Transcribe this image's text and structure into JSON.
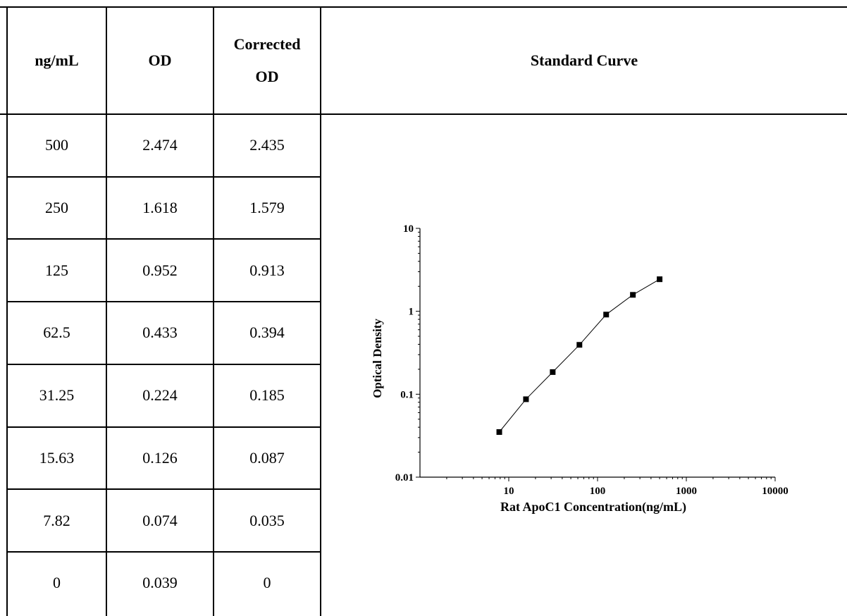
{
  "table": {
    "headers": {
      "conc": "ng/mL",
      "od": "OD",
      "corrected_line1": "Corrected",
      "corrected_line2": "OD",
      "curve": "Standard Curve"
    },
    "rows": [
      {
        "conc": "500",
        "od": "2.474",
        "corrected": "2.435"
      },
      {
        "conc": "250",
        "od": "1.618",
        "corrected": "1.579"
      },
      {
        "conc": "125",
        "od": "0.952",
        "corrected": "0.913"
      },
      {
        "conc": "62.5",
        "od": "0.433",
        "corrected": "0.394"
      },
      {
        "conc": "31.25",
        "od": "0.224",
        "corrected": "0.185"
      },
      {
        "conc": "15.63",
        "od": "0.126",
        "corrected": "0.087"
      },
      {
        "conc": "7.82",
        "od": "0.074",
        "corrected": "0.035"
      },
      {
        "conc": "0",
        "od": "0.039",
        "corrected": "0"
      }
    ]
  },
  "chart_data": {
    "type": "line",
    "title": "",
    "xlabel": "Rat ApoC1 Concentration(ng/mL)",
    "ylabel": "Optical Density",
    "x_scale": "log",
    "y_scale": "log",
    "xlim": [
      1,
      10000
    ],
    "ylim": [
      0.01,
      10
    ],
    "x_ticks": [
      "10",
      "100",
      "1000",
      "10000"
    ],
    "y_ticks": [
      "0.01",
      "0.1",
      "1",
      "10"
    ],
    "grid": false,
    "marker": "square",
    "x": [
      7.82,
      15.63,
      31.25,
      62.5,
      125,
      250,
      500
    ],
    "y": [
      0.035,
      0.087,
      0.185,
      0.394,
      0.913,
      1.579,
      2.435
    ]
  }
}
